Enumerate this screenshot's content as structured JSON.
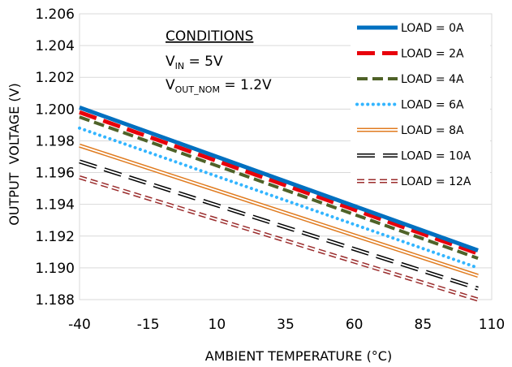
{
  "chart_data": {
    "type": "line",
    "xlabel": "AMBIENT TEMPERATURE (°C)",
    "ylabel": "OUTPUT  VOLTAGE (V)",
    "xlim": [
      -40,
      110
    ],
    "ylim": [
      1.188,
      1.206
    ],
    "x_ticks": [
      "-40",
      "-15",
      "10",
      "35",
      "60",
      "85",
      "110"
    ],
    "y_ticks": [
      "1.188",
      "1.190",
      "1.192",
      "1.194",
      "1.196",
      "1.198",
      "1.200",
      "1.202",
      "1.204",
      "1.206"
    ],
    "grid": "horizontal",
    "legend_position": "top-right",
    "conditions": {
      "heading": "CONDITIONS",
      "vin_main": "V",
      "vin_sub": "IN",
      "vin_value": " = 5V",
      "vout_main": "V",
      "vout_sub": "OUT_NOM",
      "vout_value": " = 1.2V"
    },
    "series": [
      {
        "name": "LOAD = 0A",
        "color": "#0070c0",
        "style": "solid-thick",
        "x": [
          -40,
          105
        ],
        "y": [
          1.2001,
          1.1911
        ]
      },
      {
        "name": "LOAD = 2A",
        "color": "#e8000b",
        "style": "dash-thick",
        "x": [
          -40,
          105
        ],
        "y": [
          1.1998,
          1.1909
        ]
      },
      {
        "name": "LOAD = 4A",
        "color": "#4f6228",
        "style": "dash",
        "x": [
          -40,
          105
        ],
        "y": [
          1.1995,
          1.1906
        ]
      },
      {
        "name": "LOAD = 6A",
        "color": "#33b5ff",
        "style": "dotted",
        "x": [
          -40,
          105
        ],
        "y": [
          1.1988,
          1.19
        ]
      },
      {
        "name": "LOAD = 8A",
        "color": "#e07b1f",
        "style": "double",
        "x": [
          -40,
          105
        ],
        "y": [
          1.1977,
          1.1895
        ]
      },
      {
        "name": "LOAD = 10A",
        "color": "#000000",
        "style": "double-dash",
        "x": [
          -40,
          105
        ],
        "y": [
          1.1967,
          1.1887
        ]
      },
      {
        "name": "LOAD = 12A",
        "color": "#9b2d2d",
        "style": "double-dash-short",
        "x": [
          -40,
          105
        ],
        "y": [
          1.1957,
          1.188
        ]
      }
    ]
  }
}
